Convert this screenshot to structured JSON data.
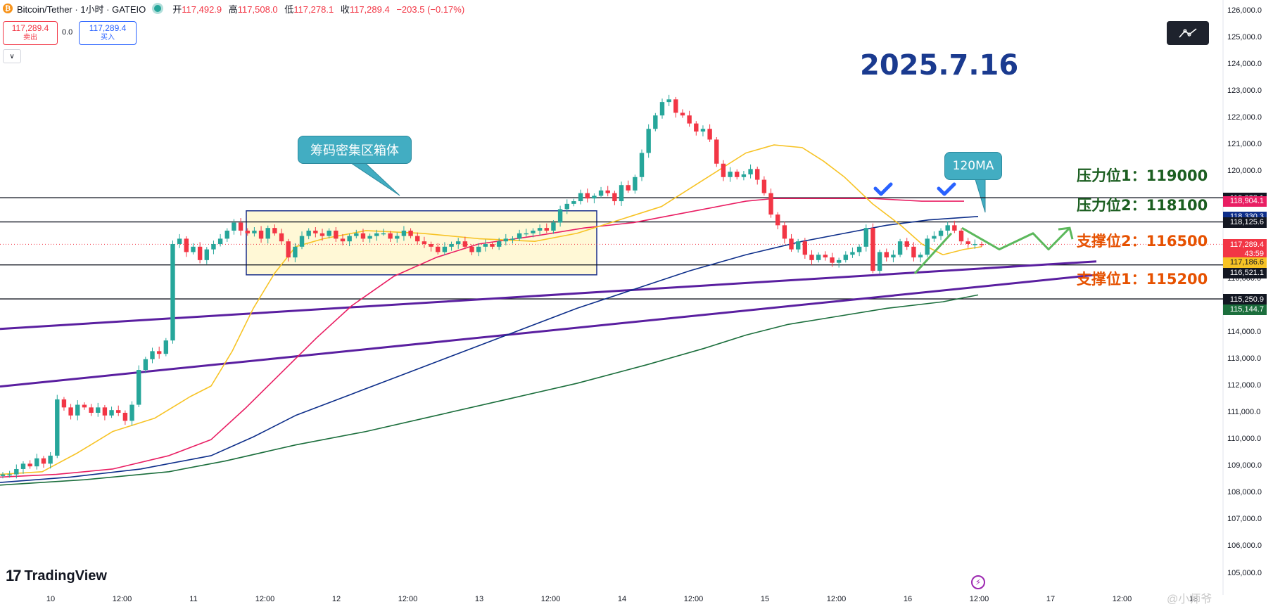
{
  "header": {
    "title": "Bitcoin/Tether · 1小时 · GATEIO",
    "ohlc": [
      {
        "label": "开",
        "value": "117,492.9"
      },
      {
        "label": "高",
        "value": "117,508.0"
      },
      {
        "label": "低",
        "value": "117,278.1"
      },
      {
        "label": "收",
        "value": "117,289.4"
      }
    ],
    "change": "−203.5 (−0.17%)"
  },
  "trade": {
    "sell_price": "117,289.4",
    "sell_label": "卖出",
    "spread": "0.0",
    "buy_price": "117,289.4",
    "buy_label": "买入"
  },
  "annotations": {
    "date": "2025.7.16",
    "box_label": "筹码密集区箱体",
    "ma_label": "120MA",
    "resistance1": "压力位1：119000",
    "resistance2": "压力位2：118100",
    "support2": "支撑位2：116500",
    "support1": "支撑位1：115200"
  },
  "branding": {
    "logo": "TradingView",
    "watermark": "@小师爷"
  },
  "colors": {
    "up": "#26a69a",
    "down": "#f23645",
    "ma_short": "#f7c325",
    "ma_mid": "#e91e63",
    "ma_120": "#0d2e8a",
    "ma_long": "#1b6e3c",
    "trend": "#5a1fa0",
    "projection": "#5cb85c"
  },
  "chart_data": {
    "type": "candlestick",
    "symbol": "Bitcoin/Tether",
    "interval": "1小时",
    "exchange": "GATEIO",
    "ylim": [
      104200,
      126200
    ],
    "y_ticks": [
      126000,
      125000,
      124000,
      123000,
      122000,
      121000,
      120000,
      119000,
      118000,
      117000,
      116000,
      115000,
      114000,
      113000,
      112000,
      111000,
      110000,
      109000,
      108000,
      107000,
      106000,
      105000
    ],
    "y_tick_labels": [
      "126,000.0",
      "125,000.0",
      "124,000.0",
      "123,000.0",
      "122,000.0",
      "121,000.0",
      "120,000.0",
      "119,000.0",
      "118,000.0",
      "117,000.0",
      "116,000.0",
      "115,000.0",
      "114,000.0",
      "113,000.0",
      "112,000.0",
      "111,000.0",
      "110,000.0",
      "109,000.0",
      "108,000.0",
      "107,000.0",
      "106,000.0",
      "105,000.0"
    ],
    "x_tick_labels": [
      "10",
      "12:00",
      "11",
      "12:00",
      "12",
      "12:00",
      "13",
      "12:00",
      "14",
      "12:00",
      "15",
      "12:00",
      "16",
      "12:00",
      "17",
      "12:00",
      "18"
    ],
    "key_levels": [
      119028.1,
      118125.6,
      116521.1,
      115250.9
    ],
    "price_labels": [
      {
        "text": "119,028.1",
        "price": 119028.1,
        "color": "#131722"
      },
      {
        "text": "118,904.1",
        "price": 118904.1,
        "color": "#e91e63"
      },
      {
        "text": "118,330.3",
        "price": 118330.3,
        "color": "#0d2e8a"
      },
      {
        "text": "118,125.6",
        "price": 118125.6,
        "color": "#131722"
      },
      {
        "text": "117,289.4",
        "price": 117289.4,
        "color": "#f23645"
      },
      {
        "text": "43:59",
        "price": 116950,
        "color": "#f23645"
      },
      {
        "text": "117,186.6",
        "price": 116620,
        "color": "#f7c325"
      },
      {
        "text": "116,521.1",
        "price": 116230,
        "color": "#131722"
      },
      {
        "text": "115,250.9",
        "price": 115250.9,
        "color": "#131722"
      },
      {
        "text": "115,144.7",
        "price": 114870,
        "color": "#1b6e3c"
      }
    ],
    "box": {
      "price_high": 118540,
      "price_low": 116150
    },
    "close_path": [
      108700,
      108700,
      108900,
      109100,
      109000,
      109300,
      109100,
      109400,
      111500,
      111200,
      110900,
      111300,
      111200,
      111000,
      111200,
      110900,
      111100,
      111000,
      110700,
      111300,
      112600,
      113000,
      113300,
      113200,
      113700,
      117300,
      117500,
      117000,
      117200,
      116700,
      117100,
      117300,
      117500,
      117800,
      118100,
      117800,
      117700,
      117800,
      117500,
      117900,
      117700,
      117400,
      116800,
      117200,
      117600,
      117800,
      117700,
      117600,
      117800,
      117500,
      117400,
      117600,
      117700,
      117500,
      117600,
      117700,
      117700,
      117500,
      117600,
      117800,
      117600,
      117400,
      117300,
      117200,
      117000,
      117200,
      117300,
      117400,
      117200,
      117000,
      117200,
      117300,
      117200,
      117400,
      117500,
      117500,
      117700,
      117700,
      117800,
      117900,
      117800,
      118100,
      118600,
      118800,
      118900,
      119200,
      119000,
      119100,
      119300,
      119200,
      118900,
      119500,
      119300,
      119800,
      120700,
      121600,
      122100,
      122600,
      122700,
      122200,
      122100,
      121800,
      121500,
      121600,
      121200,
      120300,
      119800,
      120000,
      119800,
      119900,
      120100,
      119700,
      119200,
      118400,
      118000,
      117500,
      117100,
      117400,
      116900,
      116700,
      116900,
      116800,
      116600,
      116700,
      116900,
      117000,
      117200,
      117900,
      116300,
      117000,
      116800,
      116900,
      117400,
      117200,
      116800,
      116900,
      117500,
      117600,
      117800,
      118000,
      117800,
      117400,
      117300,
      117300,
      117289
    ],
    "ma_short_path": [
      [
        0,
        108700
      ],
      [
        60,
        108800
      ],
      [
        110,
        109500
      ],
      [
        160,
        110300
      ],
      [
        220,
        110800
      ],
      [
        270,
        111600
      ],
      [
        300,
        112000
      ],
      [
        330,
        113300
      ],
      [
        360,
        114900
      ],
      [
        390,
        116200
      ],
      [
        420,
        117200
      ],
      [
        460,
        117500
      ],
      [
        520,
        117800
      ],
      [
        600,
        117700
      ],
      [
        680,
        117500
      ],
      [
        760,
        117400
      ],
      [
        820,
        117700
      ],
      [
        880,
        118200
      ],
      [
        940,
        118700
      ],
      [
        1000,
        119700
      ],
      [
        1060,
        120700
      ],
      [
        1100,
        121000
      ],
      [
        1140,
        120900
      ],
      [
        1170,
        120400
      ],
      [
        1200,
        119800
      ],
      [
        1240,
        118800
      ],
      [
        1280,
        118000
      ],
      [
        1310,
        117300
      ],
      [
        1340,
        116900
      ],
      [
        1370,
        117100
      ],
      [
        1395,
        117200
      ]
    ],
    "ma_mid_path": [
      [
        0,
        108600
      ],
      [
        80,
        108700
      ],
      [
        160,
        108900
      ],
      [
        240,
        109400
      ],
      [
        300,
        110000
      ],
      [
        350,
        111200
      ],
      [
        400,
        112500
      ],
      [
        450,
        113800
      ],
      [
        500,
        115000
      ],
      [
        560,
        116100
      ],
      [
        620,
        116800
      ],
      [
        680,
        117300
      ],
      [
        760,
        117600
      ],
      [
        830,
        117900
      ],
      [
        900,
        118100
      ],
      [
        980,
        118500
      ],
      [
        1060,
        118900
      ],
      [
        1100,
        119000
      ],
      [
        1160,
        119000
      ],
      [
        1240,
        119000
      ],
      [
        1310,
        118900
      ],
      [
        1370,
        118900
      ]
    ],
    "ma_120_path": [
      [
        0,
        108400
      ],
      [
        100,
        108600
      ],
      [
        200,
        108900
      ],
      [
        300,
        109400
      ],
      [
        360,
        110100
      ],
      [
        420,
        110900
      ],
      [
        500,
        111700
      ],
      [
        580,
        112500
      ],
      [
        660,
        113300
      ],
      [
        740,
        114100
      ],
      [
        820,
        114900
      ],
      [
        900,
        115600
      ],
      [
        980,
        116300
      ],
      [
        1060,
        116900
      ],
      [
        1140,
        117400
      ],
      [
        1200,
        117700
      ],
      [
        1260,
        118000
      ],
      [
        1320,
        118200
      ],
      [
        1390,
        118330
      ]
    ],
    "ma_long_path": [
      [
        0,
        108300
      ],
      [
        120,
        108500
      ],
      [
        240,
        108800
      ],
      [
        320,
        109200
      ],
      [
        420,
        109800
      ],
      [
        520,
        110300
      ],
      [
        620,
        110900
      ],
      [
        720,
        111500
      ],
      [
        820,
        112100
      ],
      [
        920,
        112800
      ],
      [
        1000,
        113400
      ],
      [
        1060,
        113900
      ],
      [
        1120,
        114300
      ],
      [
        1190,
        114600
      ],
      [
        1260,
        114900
      ],
      [
        1340,
        115144
      ],
      [
        1390,
        115400
      ]
    ],
    "trendlines": [
      {
        "from": [
          0,
          114130
        ],
        "to": [
          1558,
          116650
        ]
      },
      {
        "from": [
          0,
          111980
        ],
        "to": [
          1558,
          116150
        ]
      }
    ],
    "projection_path": [
      [
        1367,
        117900
      ],
      [
        1420,
        117100
      ],
      [
        1468,
        117700
      ],
      [
        1490,
        117100
      ],
      [
        1520,
        117900
      ]
    ]
  }
}
